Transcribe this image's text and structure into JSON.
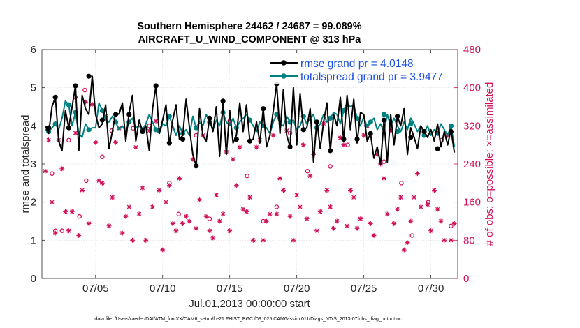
{
  "chart_data": {
    "type": "line",
    "title_line1": "Southern Hemisphere 24462 / 24687 = 99.089%",
    "title_line2": "AIRCRAFT_U_WIND_COMPONENT @ 313 hPa",
    "xlabel": "Jul.01,2013 00:00:00 start",
    "ylabel_left": "rmse and totalspread",
    "ylabel_right": "# of obs: o=possible; ×=assimilated",
    "footer": "data file: /Users/raeder/DAI/ATM_forcXX/CAM6_setup/f.e21.FHIST_BGC.f09_025.CAM6assim.011/Diags_NTrS_2013-07/obs_diag_output.nc",
    "xlim": [
      1,
      32
    ],
    "ylim_left": [
      0,
      6
    ],
    "ylim_right": [
      0,
      480
    ],
    "xticks": [
      5,
      10,
      15,
      20,
      25,
      30
    ],
    "xtick_labels": [
      "07/05",
      "07/10",
      "07/15",
      "07/20",
      "07/25",
      "07/30"
    ],
    "yticks_left": [
      0,
      1,
      2,
      3,
      4,
      5,
      6
    ],
    "yticks_left_labels": [
      "0",
      "1",
      "2",
      "3",
      "4",
      "5",
      "6"
    ],
    "yticks_right": [
      0,
      80,
      160,
      240,
      320,
      400,
      480
    ],
    "yticks_right_labels": [
      "0",
      "80",
      "160",
      "240",
      "320",
      "400",
      "480"
    ],
    "grid": true,
    "legend_position": "top-right",
    "colors": {
      "rmse": "#000000",
      "spread": "#008080",
      "obs": "#d0105a",
      "legend_text": "#1a4fe0"
    },
    "series": [
      {
        "name": "rmse grand pr = 4.0148",
        "axis": "left",
        "x": [
          1.25,
          1.5,
          1.75,
          2.0,
          2.25,
          2.5,
          2.75,
          3.0,
          3.25,
          3.5,
          3.75,
          4.0,
          4.25,
          4.5,
          4.75,
          5.0,
          5.25,
          5.5,
          5.75,
          6.0,
          6.25,
          6.5,
          6.75,
          7.0,
          7.25,
          7.5,
          7.75,
          8.0,
          8.25,
          8.5,
          8.75,
          9.0,
          9.25,
          9.5,
          9.75,
          10.0,
          10.25,
          10.5,
          10.75,
          11.0,
          11.25,
          11.5,
          11.75,
          12.0,
          12.25,
          12.5,
          12.75,
          13.0,
          13.25,
          13.5,
          13.75,
          14.0,
          14.25,
          14.5,
          14.75,
          15.0,
          15.25,
          15.5,
          15.75,
          16.0,
          16.25,
          16.5,
          16.75,
          17.0,
          17.25,
          17.5,
          17.75,
          18.0,
          18.25,
          18.5,
          18.75,
          19.0,
          19.25,
          19.5,
          19.75,
          20.0,
          20.25,
          20.5,
          20.75,
          21.0,
          21.25,
          21.5,
          21.75,
          22.0,
          22.25,
          22.5,
          22.75,
          23.0,
          23.25,
          23.5,
          23.75,
          24.0,
          24.25,
          24.5,
          24.75,
          25.0,
          25.25,
          25.5,
          25.75,
          26.0,
          26.25,
          26.5,
          26.75,
          27.0,
          27.25,
          27.5,
          27.75,
          28.0,
          28.25,
          28.5,
          28.75,
          29.0,
          29.25,
          29.5,
          29.75,
          30.0,
          30.25,
          30.5,
          30.75,
          31.0,
          31.25,
          31.5,
          31.75
        ],
        "values": [
          4.0,
          3.8,
          4.5,
          4.75,
          3.6,
          3.35,
          4.4,
          3.95,
          4.5,
          5.05,
          3.35,
          4.8,
          4.45,
          4.3,
          5.3,
          4.3,
          3.95,
          4.05,
          4.55,
          3.4,
          3.85,
          4.35,
          4.3,
          4.6,
          3.6,
          4.35,
          4.8,
          3.6,
          4.15,
          3.85,
          4.0,
          3.35,
          4.45,
          5.05,
          3.8,
          4.15,
          4.55,
          3.5,
          4.15,
          4.55,
          3.65,
          3.75,
          4.7,
          3.95,
          3.25,
          2.95,
          4.45,
          3.75,
          3.6,
          4.2,
          3.85,
          4.5,
          3.2,
          4.65,
          3.25,
          4.4,
          3.55,
          3.75,
          4.6,
          3.85,
          4.55,
          3.6,
          3.65,
          4.1,
          3.55,
          4.45,
          3.45,
          3.75,
          4.4,
          5.1,
          3.8,
          4.95,
          3.75,
          3.45,
          5.0,
          3.5,
          4.85,
          3.9,
          3.95,
          4.45,
          3.05,
          4.15,
          3.4,
          4.1,
          4.6,
          3.35,
          4.3,
          4.0,
          4.75,
          3.6,
          4.8,
          3.9,
          4.7,
          3.55,
          4.35,
          4.3,
          3.6,
          3.8,
          3.15,
          3.45,
          3.0,
          4.15,
          3.05,
          4.3,
          3.5,
          4.25,
          4.0,
          4.45,
          3.25,
          3.95,
          3.7,
          3.4,
          4.0,
          3.85,
          3.7,
          3.9,
          3.6,
          4.05,
          3.45,
          3.85,
          3.5,
          3.9,
          3.3
        ],
        "dots": [
          [
            1.5,
            3.95
          ],
          [
            2,
            4.75
          ],
          [
            3,
            3.95
          ],
          [
            3.5,
            5.05
          ],
          [
            4.5,
            5.3
          ],
          [
            5.5,
            4.15
          ],
          [
            6.5,
            4.3
          ],
          [
            7.5,
            4.3
          ],
          [
            8.5,
            3.85
          ],
          [
            9.5,
            5.05
          ],
          [
            10.5,
            3.55
          ],
          [
            11.5,
            3.65
          ],
          [
            12.5,
            2.95
          ],
          [
            13.5,
            4.2
          ],
          [
            14.5,
            4.65
          ],
          [
            15.5,
            3.65
          ],
          [
            16.5,
            3.6
          ],
          [
            17.5,
            4.45
          ],
          [
            18.5,
            5.1
          ],
          [
            19.5,
            3.45
          ],
          [
            20.5,
            3.9
          ],
          [
            21.5,
            4.1
          ],
          [
            22.5,
            3.35
          ],
          [
            23.5,
            3.65
          ],
          [
            24.5,
            3.65
          ],
          [
            25.5,
            3.8
          ],
          [
            26.5,
            4.15
          ],
          [
            27.5,
            4.25
          ],
          [
            28.5,
            3.7
          ],
          [
            29.5,
            3.85
          ],
          [
            30.5,
            3.4
          ],
          [
            31.5,
            3.85
          ]
        ]
      },
      {
        "name": "totalspread grand pr = 3.9477",
        "axis": "left",
        "x": [
          1.25,
          1.5,
          1.75,
          2.0,
          2.25,
          2.5,
          2.75,
          3.0,
          3.25,
          3.5,
          3.75,
          4.0,
          4.25,
          4.5,
          4.75,
          5.0,
          5.25,
          5.5,
          5.75,
          6.0,
          6.25,
          6.5,
          6.75,
          7.0,
          7.25,
          7.5,
          7.75,
          8.0,
          8.25,
          8.5,
          8.75,
          9.0,
          9.25,
          9.5,
          9.75,
          10.0,
          10.25,
          10.5,
          10.75,
          11.0,
          11.25,
          11.5,
          11.75,
          12.0,
          12.25,
          12.5,
          12.75,
          13.0,
          13.25,
          13.5,
          13.75,
          14.0,
          14.25,
          14.5,
          14.75,
          15.0,
          15.25,
          15.5,
          15.75,
          16.0,
          16.25,
          16.5,
          16.75,
          17.0,
          17.25,
          17.5,
          17.75,
          18.0,
          18.25,
          18.5,
          18.75,
          19.0,
          19.25,
          19.5,
          19.75,
          20.0,
          20.25,
          20.5,
          20.75,
          21.0,
          21.25,
          21.5,
          21.75,
          22.0,
          22.25,
          22.5,
          22.75,
          23.0,
          23.25,
          23.5,
          23.75,
          24.0,
          24.25,
          24.5,
          24.75,
          25.0,
          25.25,
          25.5,
          25.75,
          26.0,
          26.25,
          26.5,
          26.75,
          27.0,
          27.25,
          27.5,
          27.75,
          28.0,
          28.25,
          28.5,
          28.75,
          29.0,
          29.25,
          29.5,
          29.75,
          30.0,
          30.25,
          30.5,
          30.75,
          31.0,
          31.25,
          31.5,
          31.75
        ],
        "values": [
          3.9,
          3.85,
          3.95,
          4.05,
          3.9,
          4.2,
          4.65,
          4.55,
          4.0,
          4.35,
          3.8,
          3.7,
          4.05,
          3.9,
          3.95,
          3.95,
          4.6,
          4.4,
          4.15,
          4.1,
          4.25,
          4.1,
          3.9,
          4.0,
          3.85,
          4.1,
          4.2,
          3.95,
          4.0,
          3.9,
          4.05,
          4.3,
          4.1,
          3.9,
          3.8,
          4.05,
          4.0,
          4.25,
          4.0,
          3.75,
          4.0,
          3.8,
          3.9,
          3.75,
          4.25,
          3.95,
          4.1,
          4.0,
          4.3,
          4.1,
          3.9,
          4.15,
          4.0,
          4.35,
          4.1,
          4.0,
          4.2,
          3.95,
          4.1,
          4.2,
          4.3,
          4.15,
          4.0,
          3.85,
          4.1,
          4.0,
          3.95,
          3.8,
          4.1,
          4.3,
          4.05,
          4.0,
          4.25,
          4.1,
          4.15,
          3.9,
          4.0,
          4.25,
          4.05,
          4.2,
          4.3,
          3.95,
          4.05,
          4.3,
          4.1,
          4.2,
          4.35,
          4.3,
          4.05,
          4.4,
          4.6,
          4.5,
          4.55,
          4.2,
          4.0,
          4.25,
          3.95,
          4.1,
          4.2,
          3.9,
          4.05,
          3.85,
          4.3,
          4.0,
          4.2,
          4.0,
          3.85,
          4.1,
          3.9,
          4.2,
          4.05,
          3.85,
          4.0,
          3.8,
          4.0,
          3.75,
          3.9,
          3.8,
          4.05,
          3.9,
          3.75,
          4.0,
          3.45
        ],
        "dots": [
          [
            1.5,
            3.85
          ],
          [
            2,
            4.05
          ],
          [
            3,
            4.55
          ],
          [
            3.5,
            4.35
          ],
          [
            4.5,
            3.9
          ],
          [
            5.5,
            4.4
          ],
          [
            6.5,
            4.1
          ],
          [
            7.5,
            4.1
          ],
          [
            8.5,
            3.9
          ],
          [
            9.5,
            3.9
          ],
          [
            10.5,
            4.25
          ],
          [
            11.5,
            3.8
          ],
          [
            12.5,
            3.95
          ],
          [
            13.5,
            4.1
          ],
          [
            14.5,
            4.35
          ],
          [
            15.5,
            3.95
          ],
          [
            16.5,
            4.15
          ],
          [
            17.5,
            4.0
          ],
          [
            18.5,
            4.3
          ],
          [
            19.5,
            4.1
          ],
          [
            20.5,
            4.25
          ],
          [
            21.5,
            3.95
          ],
          [
            22.5,
            4.2
          ],
          [
            23.5,
            4.4
          ],
          [
            24.5,
            4.2
          ],
          [
            25.5,
            4.1
          ],
          [
            26.5,
            4.3
          ],
          [
            27.5,
            3.85
          ],
          [
            28.5,
            4.05
          ],
          [
            29.5,
            3.75
          ],
          [
            30.5,
            3.8
          ],
          [
            31.5,
            4.0
          ]
        ]
      },
      {
        "name": "# of obs possible",
        "axis": "right",
        "marker": "o",
        "x": [
          1.5,
          1.75,
          2.0,
          2.5,
          3.0,
          3.5,
          3.8,
          4.2,
          4.3,
          5.5,
          6.2,
          7.8,
          9.0,
          10.5,
          11.2,
          12.5,
          13.5,
          15.0,
          16.3,
          17.5,
          18.5,
          19.5,
          20.8,
          22.5,
          23.8,
          25.2,
          26.5,
          27.8,
          28.6,
          29.8,
          30.8,
          31.5
        ],
        "values": [
          310,
          220,
          100,
          100,
          290,
          380,
          130,
          395,
          205,
          255,
          310,
          315,
          320,
          200,
          135,
          300,
          125,
          330,
          215,
          120,
          150,
          305,
          225,
          235,
          280,
          320,
          245,
          200,
          90,
          160,
          290,
          110
        ]
      },
      {
        "name": "# of obs assimilated",
        "axis": "right",
        "marker": "x",
        "x": [
          1.25,
          1.5,
          1.75,
          2.0,
          2.25,
          2.5,
          2.75,
          3.0,
          3.25,
          3.5,
          3.75,
          4.0,
          4.25,
          4.5,
          4.75,
          5.0,
          5.25,
          5.5,
          5.75,
          6.0,
          6.25,
          6.5,
          6.75,
          7.0,
          7.25,
          7.5,
          7.75,
          8.0,
          8.25,
          8.5,
          8.75,
          9.0,
          9.25,
          9.5,
          9.75,
          10.0,
          10.25,
          10.5,
          10.75,
          11.0,
          11.25,
          11.5,
          11.75,
          12.0,
          12.25,
          12.5,
          12.75,
          13.0,
          13.25,
          13.5,
          13.75,
          14.0,
          14.25,
          14.5,
          14.75,
          15.0,
          15.25,
          15.5,
          15.75,
          16.0,
          16.25,
          16.5,
          16.75,
          17.0,
          17.25,
          17.5,
          17.75,
          18.0,
          18.25,
          18.5,
          18.75,
          19.0,
          19.25,
          19.5,
          19.75,
          20.0,
          20.25,
          20.5,
          20.75,
          21.0,
          21.25,
          21.5,
          21.75,
          22.0,
          22.25,
          22.5,
          22.75,
          23.0,
          23.25,
          23.5,
          23.75,
          24.0,
          24.25,
          24.5,
          24.75,
          25.0,
          25.25,
          25.5,
          25.75,
          26.0,
          26.25,
          26.5,
          26.75,
          27.0,
          27.25,
          27.5,
          27.75,
          28.0,
          28.25,
          28.5,
          28.75,
          29.0,
          29.25,
          29.5,
          29.75,
          30.0,
          30.25,
          30.5,
          30.75,
          31.0,
          31.25,
          31.5,
          31.75
        ],
        "values": [
          225,
          290,
          160,
          95,
          290,
          230,
          140,
          100,
          140,
          305,
          90,
          185,
          370,
          115,
          365,
          285,
          205,
          200,
          340,
          110,
          170,
          285,
          315,
          95,
          130,
          150,
          80,
          275,
          135,
          190,
          80,
          310,
          150,
          330,
          185,
          60,
          160,
          195,
          115,
          100,
          210,
          115,
          130,
          120,
          250,
          105,
          165,
          300,
          130,
          100,
          85,
          175,
          120,
          135,
          265,
          100,
          250,
          195,
          275,
          145,
          140,
          170,
          80,
          275,
          290,
          80,
          120,
          135,
          300,
          135,
          210,
          185,
          310,
          130,
          80,
          175,
          150,
          280,
          125,
          215,
          260,
          100,
          140,
          325,
          185,
          150,
          105,
          120,
          295,
          280,
          110,
          185,
          170,
          105,
          125,
          300,
          320,
          115,
          90,
          260,
          240,
          210,
          135,
          310,
          115,
          145,
          170,
          60,
          75,
          120,
          170,
          220,
          150,
          300,
          155,
          100,
          185,
          145,
          120,
          80,
          300,
          80,
          115
        ]
      }
    ]
  }
}
